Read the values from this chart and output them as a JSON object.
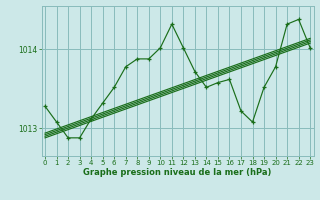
{
  "bg_color": "#cce8e8",
  "grid_color": "#88bbbb",
  "line_color": "#1a6e1a",
  "title": "Graphe pression niveau de la mer (hPa)",
  "ylabel_ticks": [
    1013,
    1014
  ],
  "xlim": [
    -0.3,
    23.3
  ],
  "ylim": [
    1012.65,
    1014.55
  ],
  "main_x": [
    0,
    1,
    2,
    3,
    4,
    5,
    6,
    7,
    8,
    9,
    10,
    11,
    12,
    13,
    14,
    15,
    16,
    17,
    18,
    19,
    20,
    21,
    22,
    23
  ],
  "main_y": [
    1013.28,
    1013.08,
    1012.88,
    1012.88,
    1013.12,
    1013.32,
    1013.52,
    1013.78,
    1013.88,
    1013.88,
    1014.02,
    1014.32,
    1014.02,
    1013.72,
    1013.52,
    1013.58,
    1013.62,
    1013.22,
    1013.08,
    1013.52,
    1013.78,
    1014.32,
    1014.38,
    1014.02
  ],
  "trend_offsets": [
    0.0,
    0.02,
    0.04,
    0.06
  ],
  "trend_x0": 0,
  "trend_x1": 23,
  "trend_y0": 1012.88,
  "trend_y1": 1014.08
}
